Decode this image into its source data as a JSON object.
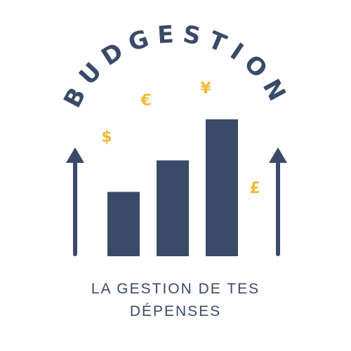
{
  "logo": {
    "brand_name": "BUDGESTION",
    "colors": {
      "primary": "#3a4a68",
      "accent": "#f2b93b",
      "background": "#ffffff"
    },
    "currency_symbols": [
      "€",
      "¥",
      "$",
      "£"
    ],
    "bars": [
      {
        "name": "bar-short",
        "relative_height": 0.47
      },
      {
        "name": "bar-medium",
        "relative_height": 0.7
      },
      {
        "name": "bar-tall",
        "relative_height": 1.0
      }
    ],
    "arrows": [
      "up-arrow-icon",
      "up-arrow-icon"
    ]
  },
  "tagline": {
    "line1": "LA GESTION DE TES",
    "line2": "DÉPENSES"
  }
}
